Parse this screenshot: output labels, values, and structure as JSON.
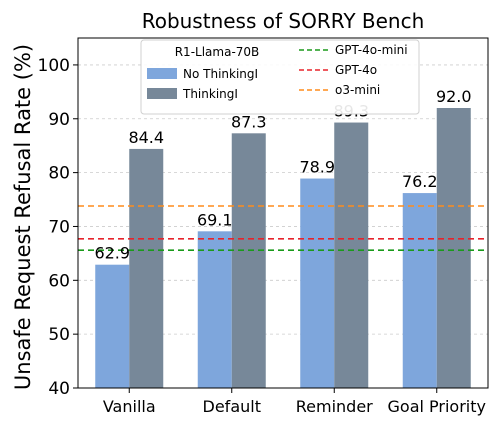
{
  "chart_data": {
    "type": "bar",
    "title": "Robustness of SORRY Bench",
    "xlabel": "",
    "ylabel": "Unsafe Request Refusal Rate (%)",
    "ylim": [
      40,
      105
    ],
    "yticks": [
      40,
      50,
      60,
      70,
      80,
      90,
      100
    ],
    "grid": true,
    "categories": [
      "Vanilla",
      "Default",
      "Reminder",
      "Goal Priority"
    ],
    "series": [
      {
        "name": "No ThinkingI",
        "values": [
          62.9,
          69.1,
          78.9,
          76.2
        ],
        "labels": [
          "62.9",
          "69.1",
          "78.9",
          "76.2"
        ],
        "color": "#7ea6dc"
      },
      {
        "name": "ThinkingI",
        "values": [
          84.4,
          87.3,
          89.3,
          92.0
        ],
        "labels": [
          "84.4",
          "87.3",
          "89.3",
          "92.0"
        ],
        "color": "#778899"
      }
    ],
    "reference_lines": [
      {
        "name": "GPT-4o-mini",
        "value": 65.6,
        "color": "#1a9a1a"
      },
      {
        "name": "GPT-4o",
        "value": 67.7,
        "color": "#e8232a"
      },
      {
        "name": "o3-mini",
        "value": 73.8,
        "color": "#ff8c1a"
      }
    ],
    "legend": {
      "placement": "top-center",
      "title": "R1-Llama-70B"
    }
  }
}
